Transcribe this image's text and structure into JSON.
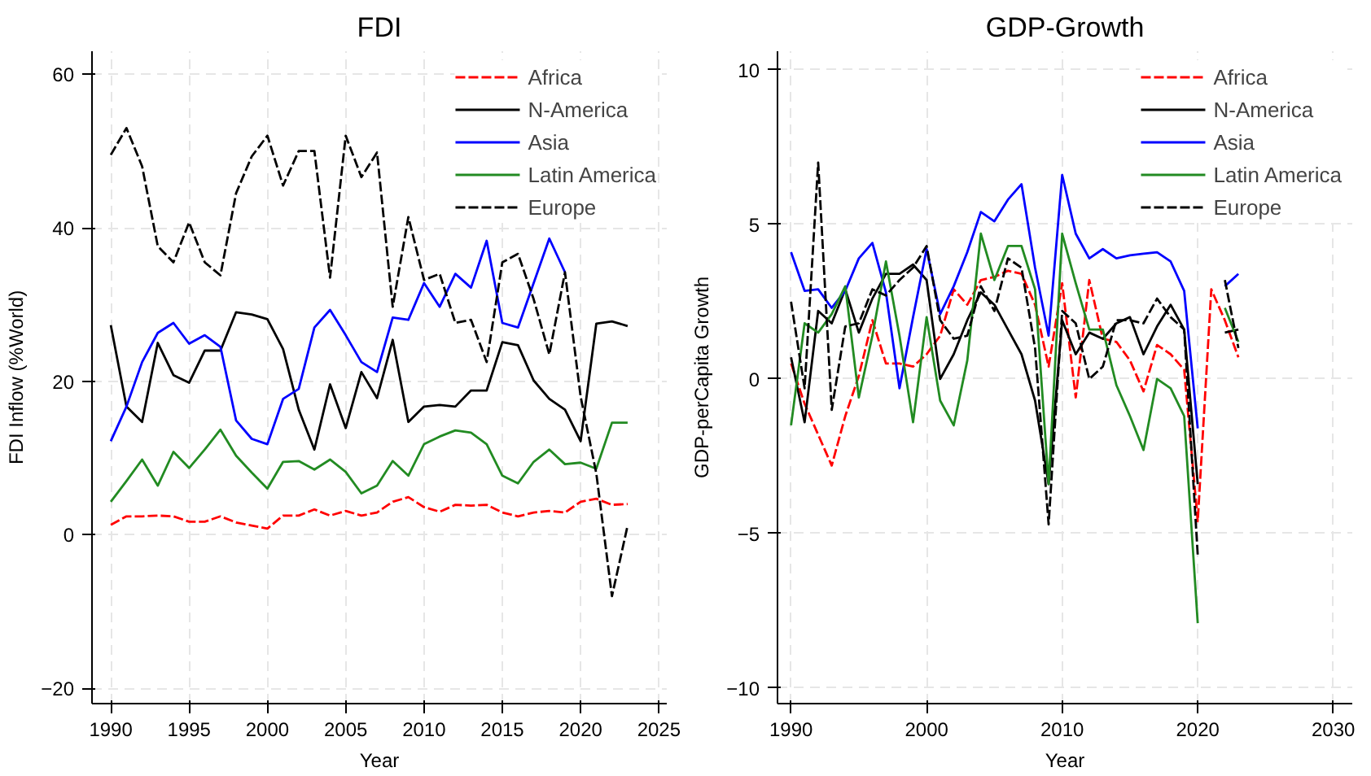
{
  "chart_data": [
    {
      "type": "line",
      "title": "FDI",
      "xlabel": "Year",
      "ylabel": "FDI Inflow (%World)",
      "x": [
        1990,
        1991,
        1992,
        1993,
        1994,
        1995,
        1996,
        1997,
        1998,
        1999,
        2000,
        2001,
        2002,
        2003,
        2004,
        2005,
        2006,
        2007,
        2008,
        2009,
        2010,
        2011,
        2012,
        2013,
        2014,
        2015,
        2016,
        2017,
        2018,
        2019,
        2020,
        2021,
        2022,
        2023
      ],
      "series": [
        {
          "name": "Africa",
          "color": "#ff0000",
          "line_style": "dashed",
          "values": [
            1.3,
            2.4,
            2.4,
            2.5,
            2.4,
            1.7,
            1.7,
            2.4,
            1.6,
            1.2,
            0.8,
            2.5,
            2.5,
            3.3,
            2.5,
            3.1,
            2.5,
            2.9,
            4.3,
            4.9,
            3.6,
            3.0,
            3.9,
            3.8,
            3.9,
            2.9,
            2.4,
            2.9,
            3.1,
            2.9,
            4.3,
            4.7,
            3.9,
            4.0
          ]
        },
        {
          "name": "N-America",
          "color": "#000000",
          "line_style": "solid",
          "values": [
            27.3,
            16.7,
            14.7,
            25,
            20.8,
            19.8,
            24,
            24,
            29,
            28.7,
            28.1,
            24.2,
            16.3,
            11.1,
            19.6,
            13.9,
            21.2,
            17.8,
            25.4,
            14.7,
            16.7,
            16.9,
            16.7,
            18.8,
            18.8,
            25.1,
            24.7,
            20.1,
            17.7,
            16.3,
            12.2,
            27.5,
            27.8,
            27.2
          ]
        },
        {
          "name": "Asia",
          "color": "#0000ff",
          "line_style": "solid",
          "values": [
            12.2,
            16.7,
            22.5,
            26.3,
            27.6,
            24.9,
            26,
            24.5,
            14.9,
            12.5,
            11.8,
            17.7,
            19,
            27,
            29.3,
            26,
            22.5,
            21.2,
            28.3,
            28,
            32.8,
            29.7,
            34,
            32.2,
            38.3,
            27.6,
            27,
            32.8,
            38.6,
            34.2,
            null,
            null,
            null,
            null
          ]
        },
        {
          "name": "Latin America",
          "color": "#228b22",
          "line_style": "solid",
          "values": [
            4.3,
            7,
            9.8,
            6.4,
            10.8,
            8.7,
            11.1,
            13.7,
            10.3,
            8.1,
            6,
            9.5,
            9.6,
            8.5,
            9.8,
            8.2,
            5.4,
            6.4,
            9.6,
            7.7,
            11.8,
            12.8,
            13.6,
            13.3,
            11.8,
            7.7,
            6.7,
            9.5,
            11.1,
            9.2,
            9.4,
            8.6,
            14.6,
            14.6
          ]
        },
        {
          "name": "Europe",
          "color": "#000000",
          "line_style": "dashed",
          "values": [
            49.5,
            53,
            48,
            37.6,
            35.5,
            40.7,
            35.5,
            33.8,
            44.5,
            49.3,
            52,
            45.5,
            50,
            50,
            33.5,
            52,
            46.6,
            49.8,
            29.7,
            41.4,
            33.2,
            34,
            27.6,
            28,
            22.5,
            35.5,
            36.6,
            30.7,
            23.5,
            34.2,
            18,
            8,
            -8,
            1.2
          ]
        }
      ],
      "xlim": [
        1988.8,
        2025.5
      ],
      "ylim": [
        -22,
        63
      ],
      "xticks": [
        1990,
        1995,
        2000,
        2005,
        2010,
        2015,
        2020,
        2025
      ],
      "yticks": [
        -20,
        0,
        20,
        40,
        60
      ],
      "grid": true,
      "legend": "top right"
    },
    {
      "type": "line",
      "title": "GDP-Growth",
      "xlabel": "Year",
      "ylabel": "GDP-perCapita Growth",
      "x": [
        1990,
        1991,
        1992,
        1993,
        1994,
        1995,
        1996,
        1997,
        1998,
        1999,
        2000,
        2001,
        2002,
        2003,
        2004,
        2005,
        2006,
        2007,
        2008,
        2009,
        2010,
        2011,
        2012,
        2013,
        2014,
        2015,
        2016,
        2017,
        2018,
        2019,
        2020,
        2021,
        2022,
        2023
      ],
      "series": [
        {
          "name": "Africa",
          "color": "#ff0000",
          "line_style": "dashed",
          "values": [
            0.5,
            -0.8,
            -1.8,
            -2.8,
            -1.2,
            0.1,
            1.9,
            0.5,
            0.5,
            0.4,
            0.8,
            1.4,
            2.9,
            2.4,
            3.2,
            3.3,
            3.5,
            3.4,
            2.4,
            0.4,
            3.1,
            -0.6,
            3.2,
            1.3,
            1.2,
            0.6,
            -0.4,
            1.1,
            0.8,
            0.3,
            -4.6,
            2.9,
            1.9,
            0.7
          ]
        },
        {
          "name": "N-America",
          "color": "#000000",
          "line_style": "solid",
          "values": [
            0.7,
            -1.4,
            2.2,
            1.8,
            2.9,
            1.5,
            2.6,
            3.4,
            3.4,
            3.7,
            3.2,
            0.0,
            0.8,
            1.9,
            2.8,
            2.4,
            1.6,
            0.8,
            -0.7,
            -3.4,
            1.9,
            0.8,
            1.5,
            1.3,
            1.8,
            2.0,
            0.8,
            1.7,
            2.4,
            1.6,
            -3.4,
            null,
            1.5,
            1.6
          ]
        },
        {
          "name": "Asia",
          "color": "#0000ff",
          "line_style": "solid",
          "values": [
            4.1,
            2.85,
            2.9,
            2.3,
            2.85,
            3.9,
            4.4,
            2.8,
            -0.3,
            2.0,
            4.2,
            2.1,
            3.0,
            4.1,
            5.4,
            5.1,
            5.8,
            6.3,
            3.6,
            1.4,
            6.6,
            4.7,
            3.9,
            4.2,
            3.9,
            4.0,
            4.05,
            4.1,
            3.8,
            2.85,
            -1.6,
            null,
            3.0,
            3.4
          ]
        },
        {
          "name": "Latin America",
          "color": "#228b22",
          "line_style": "solid",
          "values": [
            -1.5,
            1.8,
            1.5,
            2.1,
            3.0,
            -0.6,
            1.4,
            3.8,
            1.4,
            -1.4,
            2.0,
            -0.7,
            -1.5,
            0.6,
            4.7,
            3.2,
            4.3,
            4.3,
            2.9,
            -3.4,
            4.7,
            3.1,
            1.6,
            1.6,
            -0.2,
            -1.2,
            -2.3,
            0.0,
            -0.3,
            -1.2,
            -7.9,
            null,
            2.3,
            1.2
          ]
        },
        {
          "name": "Europe",
          "color": "#000000",
          "line_style": "dashed",
          "values": [
            2.5,
            -0.3,
            7.0,
            -1.0,
            1.7,
            1.8,
            2.9,
            2.7,
            3.2,
            3.6,
            4.3,
            1.9,
            1.3,
            1.4,
            3.0,
            2.2,
            3.9,
            3.6,
            1.0,
            -4.7,
            2.2,
            1.8,
            0.0,
            0.4,
            1.9,
            1.9,
            1.8,
            2.6,
            2.0,
            1.6,
            -5.7,
            null,
            3.2,
            1.0
          ]
        }
      ],
      "xlim": [
        1989,
        2031.4
      ],
      "ylim": [
        -10.5,
        10.6
      ],
      "xticks": [
        1990,
        2000,
        2010,
        2020,
        2030
      ],
      "yticks": [
        -10,
        -5,
        0,
        5,
        10
      ],
      "grid": true,
      "legend": "top right"
    }
  ]
}
